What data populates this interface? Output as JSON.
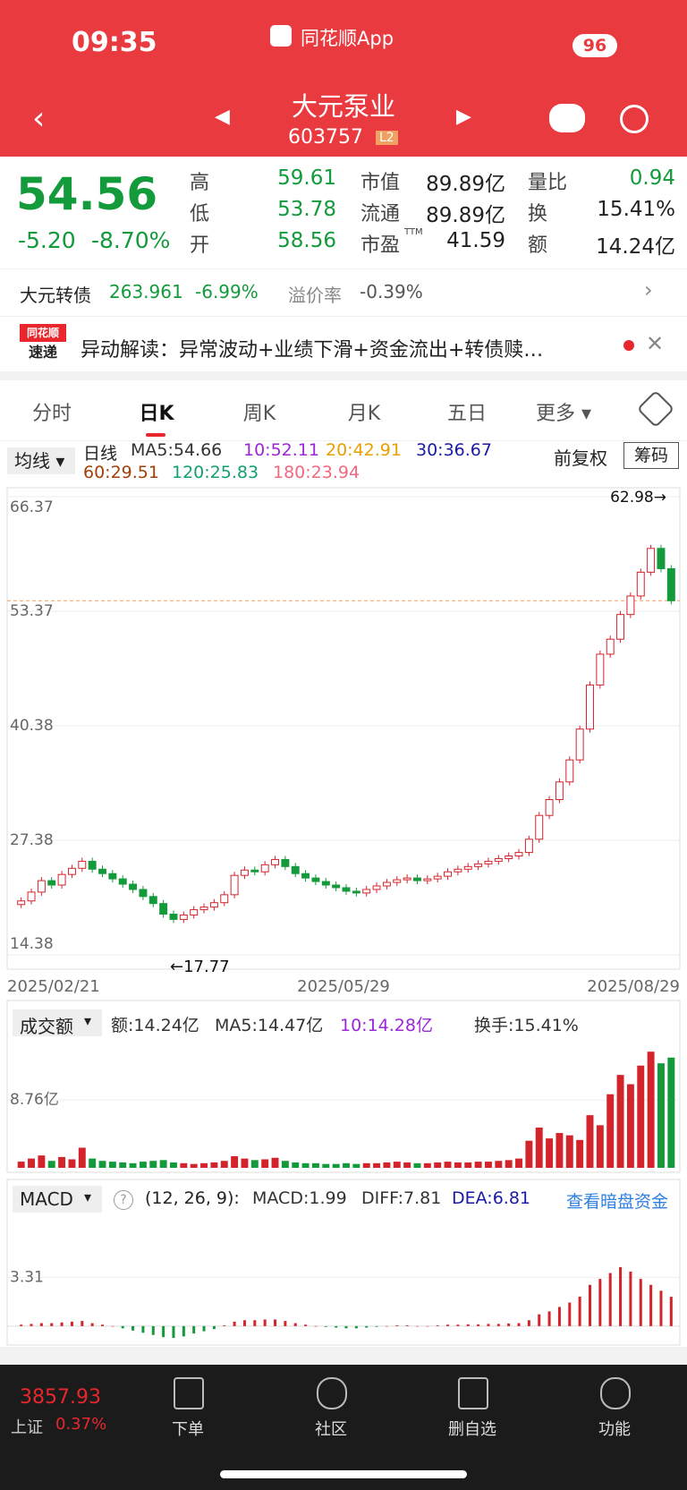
{
  "status": {
    "time": "09:35",
    "app": "同花顺App",
    "battery": "96"
  },
  "header": {
    "name": "大元泵业",
    "code": "603757",
    "badge": "L2"
  },
  "quote": {
    "price": "54.56",
    "change": "-5.20",
    "percent": "-8.70%",
    "cells": [
      [
        "高",
        "59.61"
      ],
      [
        "低",
        "53.78"
      ],
      [
        "开",
        "58.56"
      ],
      [
        "市值",
        "89.89亿"
      ],
      [
        "流通",
        "89.89亿"
      ],
      [
        "市盈",
        "41.59"
      ],
      [
        "量比",
        "0.94"
      ],
      [
        "换",
        "15.41%"
      ],
      [
        "额",
        "14.24亿"
      ]
    ],
    "ttm": "TTM"
  },
  "bond": {
    "name": "大元转债",
    "price": "263.961",
    "change": "-6.99%",
    "premium_label": "溢价率",
    "premium": "-0.39%"
  },
  "news": {
    "logo_top": "同花顺",
    "logo_bottom": "速递",
    "text": "异动解读：异常波动+业绩下滑+资金流出+转债赎…"
  },
  "tabs": [
    "分时",
    "日K",
    "周K",
    "月K",
    "五日",
    "更多"
  ],
  "ma_header": {
    "selector": "均线",
    "period": "日线",
    "items": [
      "MA5:54.66",
      "10:52.11",
      "20:42.91",
      "30:36.67",
      "60:29.51",
      "120:25.83",
      "180:23.94"
    ],
    "adjust": "前复权",
    "chips": "筹码"
  },
  "chart": {
    "type": "candlestick",
    "ylim": [
      14.38,
      66.37
    ],
    "yticks": [
      66.37,
      53.37,
      40.38,
      27.38,
      14.38
    ],
    "xlabels": [
      "2025/02/21",
      "2025/05/29",
      "2025/08/29"
    ],
    "high_label": "62.98→",
    "low_label": "←17.77",
    "values": [
      20.5,
      21.5,
      22.8,
      22.3,
      23.5,
      24.2,
      25.0,
      24.1,
      23.6,
      23.0,
      22.4,
      21.8,
      21.0,
      20.2,
      19.0,
      18.4,
      18.9,
      19.5,
      19.8,
      20.3,
      21.2,
      23.4,
      24.0,
      23.8,
      24.6,
      25.2,
      24.4,
      23.6,
      23.1,
      22.7,
      22.3,
      22.0,
      21.6,
      21.4,
      21.8,
      22.2,
      22.6,
      22.9,
      23.1,
      22.8,
      23.0,
      23.3,
      23.8,
      24.1,
      24.4,
      24.7,
      25.0,
      25.3,
      25.6,
      26.0,
      27.5,
      30.2,
      32.0,
      34.0,
      36.5,
      40.0,
      45.0,
      48.5,
      50.2,
      53.0,
      55.1,
      57.8,
      60.5,
      58.2,
      54.56
    ]
  },
  "volume": {
    "title": "成交额",
    "items": [
      "额:14.24亿",
      "MA5:14.47亿",
      "10:14.28亿",
      "换手:15.41%"
    ],
    "ylim": [
      0,
      15.6
    ],
    "yticks": [
      {
        "value": 8.76,
        "label": "8.76亿"
      }
    ],
    "values": [
      0.8,
      1.2,
      1.6,
      0.9,
      1.4,
      1.1,
      2.6,
      1.2,
      0.9,
      0.8,
      0.7,
      0.6,
      0.8,
      0.9,
      1.0,
      0.7,
      0.6,
      0.5,
      0.6,
      0.7,
      0.9,
      1.5,
      1.2,
      1.0,
      1.1,
      1.3,
      0.9,
      0.7,
      0.6,
      0.6,
      0.5,
      0.5,
      0.6,
      0.5,
      0.6,
      0.6,
      0.7,
      0.8,
      0.7,
      0.6,
      0.6,
      0.7,
      0.8,
      0.7,
      0.7,
      0.8,
      0.8,
      0.9,
      1.0,
      1.2,
      3.5,
      5.2,
      3.8,
      4.5,
      4.2,
      3.6,
      6.8,
      5.5,
      9.5,
      12.0,
      10.8,
      13.2,
      15.0,
      13.5,
      14.24
    ]
  },
  "macd": {
    "title": "MACD",
    "params": "(12, 26, 9):",
    "items": [
      "MACD:1.99",
      "DIFF:7.81",
      "DEA:6.81"
    ],
    "link": "查看暗盘资金",
    "ylim": [
      -1.1,
      7.7
    ],
    "yticks": [
      3.31
    ],
    "values": [
      0.1,
      0.15,
      0.2,
      0.2,
      0.25,
      0.3,
      0.35,
      0.2,
      0.1,
      0.0,
      -0.15,
      -0.3,
      -0.45,
      -0.6,
      -0.75,
      -0.8,
      -0.7,
      -0.5,
      -0.35,
      -0.2,
      0.05,
      0.3,
      0.4,
      0.4,
      0.45,
      0.45,
      0.35,
      0.2,
      0.1,
      0.0,
      -0.05,
      -0.1,
      -0.15,
      -0.15,
      -0.1,
      -0.05,
      0.0,
      0.05,
      0.05,
      0.0,
      0.0,
      0.05,
      0.1,
      0.1,
      0.12,
      0.12,
      0.15,
      0.15,
      0.18,
      0.2,
      0.4,
      0.8,
      1.0,
      1.3,
      1.6,
      2.0,
      2.8,
      3.2,
      3.6,
      4.0,
      3.7,
      3.2,
      2.8,
      2.4,
      1.99
    ]
  },
  "nav": {
    "index": "3857.93",
    "index_name": "上证",
    "index_change": "0.37%",
    "items": [
      "下单",
      "社区",
      "删自选",
      "功能"
    ]
  }
}
